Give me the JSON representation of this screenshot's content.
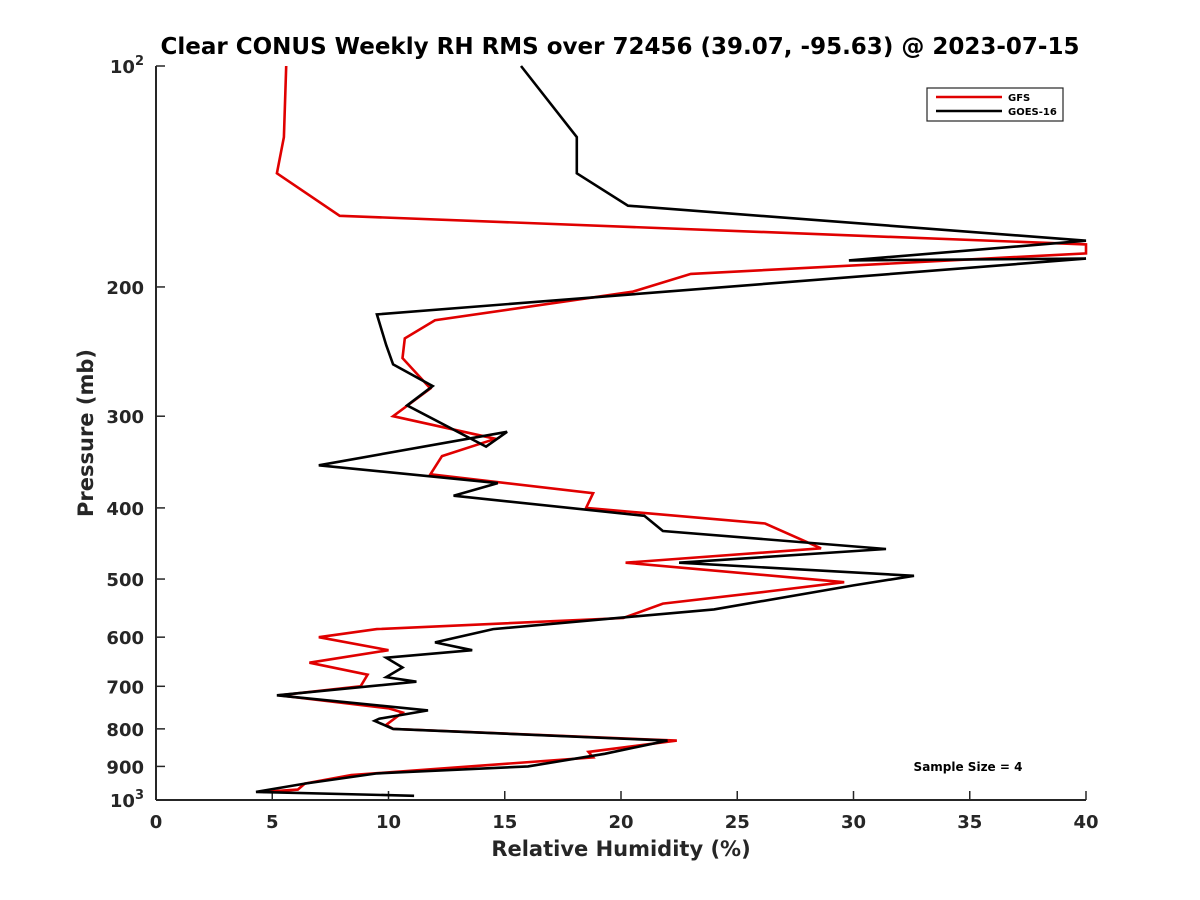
{
  "chart_data": {
    "type": "line",
    "title": "Clear CONUS Weekly RH RMS over 72456 (39.07, -95.63) @ 2023-07-15",
    "xlabel": "Relative Humidity (%)",
    "ylabel": "Pressure (mb)",
    "xlim": [
      0,
      40
    ],
    "ylim": [
      100,
      1000
    ],
    "y_scale": "log",
    "y_reversed": true,
    "grid": false,
    "x_ticks": [
      0,
      5,
      10,
      15,
      20,
      25,
      30,
      35,
      40
    ],
    "x_tick_labels": [
      "0",
      "5",
      "10",
      "15",
      "20",
      "25",
      "30",
      "35",
      "40"
    ],
    "y_ticks": [
      {
        "value": 100,
        "base": "10",
        "exp": "2"
      },
      {
        "value": 200,
        "label": "200"
      },
      {
        "value": 300,
        "label": "300"
      },
      {
        "value": 400,
        "label": "400"
      },
      {
        "value": 500,
        "label": "500"
      },
      {
        "value": 600,
        "label": "600"
      },
      {
        "value": 700,
        "label": "700"
      },
      {
        "value": 800,
        "label": "800"
      },
      {
        "value": 900,
        "label": "900"
      },
      {
        "value": 1000,
        "base": "10",
        "exp": "3"
      }
    ],
    "legend_position": "top-right",
    "annotation": "Sample Size = 4",
    "series": [
      {
        "name": "GFS",
        "color": "#e00000",
        "points": [
          [
            5.6,
            100
          ],
          [
            5.5,
            125
          ],
          [
            5.2,
            140
          ],
          [
            7.9,
            160
          ],
          [
            40,
            175
          ],
          [
            40,
            180
          ],
          [
            23.0,
            192
          ],
          [
            20.5,
            203
          ],
          [
            12.0,
            222
          ],
          [
            10.7,
            235
          ],
          [
            10.6,
            250
          ],
          [
            11.8,
            275
          ],
          [
            10.2,
            300
          ],
          [
            14.6,
            322
          ],
          [
            12.3,
            340
          ],
          [
            11.8,
            360
          ],
          [
            18.8,
            382
          ],
          [
            18.5,
            400
          ],
          [
            26.2,
            420
          ],
          [
            28.6,
            454
          ],
          [
            20.2,
            475
          ],
          [
            29.6,
            505
          ],
          [
            26.3,
            520
          ],
          [
            21.8,
            540
          ],
          [
            20.1,
            565
          ],
          [
            9.5,
            585
          ],
          [
            7.0,
            600
          ],
          [
            10.0,
            625
          ],
          [
            6.6,
            650
          ],
          [
            9.1,
            675
          ],
          [
            8.8,
            700
          ],
          [
            5.3,
            720
          ],
          [
            10.0,
            750
          ],
          [
            10.6,
            760
          ],
          [
            9.9,
            790
          ],
          [
            10.2,
            800
          ],
          [
            22.4,
            830
          ],
          [
            18.6,
            860
          ],
          [
            18.8,
            875
          ],
          [
            8.4,
            925
          ],
          [
            6.4,
            950
          ],
          [
            6.1,
            968
          ],
          [
            4.6,
            975
          ]
        ]
      },
      {
        "name": "GOES-16",
        "color": "#000000",
        "points": [
          [
            15.7,
            100
          ],
          [
            18.1,
            125
          ],
          [
            18.1,
            140
          ],
          [
            20.3,
            155
          ],
          [
            40,
            173
          ],
          [
            29.8,
            184
          ],
          [
            40,
            183
          ],
          [
            9.5,
            218
          ],
          [
            9.9,
            240
          ],
          [
            10.2,
            255
          ],
          [
            11.9,
            273
          ],
          [
            10.8,
            290
          ],
          [
            14.2,
            330
          ],
          [
            15.1,
            315
          ],
          [
            7.0,
            350
          ],
          [
            14.7,
            370
          ],
          [
            12.8,
            385
          ],
          [
            21.0,
            410
          ],
          [
            21.8,
            430
          ],
          [
            31.4,
            455
          ],
          [
            22.5,
            475
          ],
          [
            32.6,
            495
          ],
          [
            30.0,
            510
          ],
          [
            24.0,
            550
          ],
          [
            14.5,
            585
          ],
          [
            12.0,
            610
          ],
          [
            13.6,
            625
          ],
          [
            9.9,
            640
          ],
          [
            10.6,
            660
          ],
          [
            9.9,
            680
          ],
          [
            11.2,
            690
          ],
          [
            5.2,
            720
          ],
          [
            11.7,
            755
          ],
          [
            9.6,
            775
          ],
          [
            9.4,
            780
          ],
          [
            10.2,
            800
          ],
          [
            22.0,
            830
          ],
          [
            19.3,
            865
          ],
          [
            16.0,
            900
          ],
          [
            9.5,
            920
          ],
          [
            6.4,
            950
          ],
          [
            4.3,
            975
          ],
          [
            11.1,
            987
          ]
        ]
      }
    ]
  }
}
